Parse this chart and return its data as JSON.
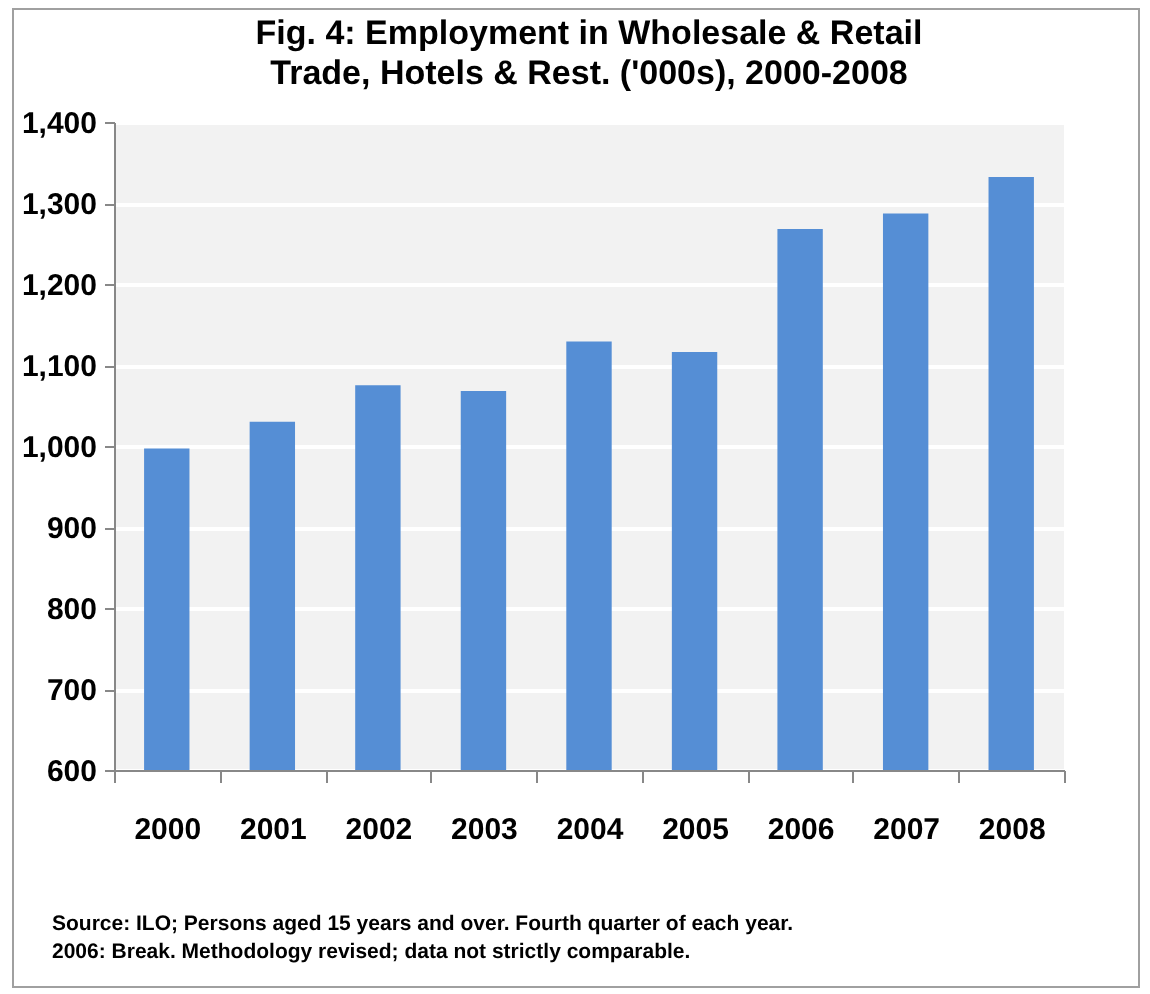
{
  "chart_data": {
    "type": "bar",
    "title": "Fig. 4: Employment in Wholesale & Retail Trade, Hotels & Rest. ('000s), 2000-2008",
    "categories": [
      "2000",
      "2001",
      "2002",
      "2003",
      "2004",
      "2005",
      "2006",
      "2007",
      "2008"
    ],
    "values": [
      997,
      1030,
      1075,
      1068,
      1129,
      1116,
      1268,
      1287,
      1332
    ],
    "color": "#558ed5",
    "ylim": [
      600,
      1400
    ],
    "yticks": [
      {
        "value": 600,
        "label": "600"
      },
      {
        "value": 700,
        "label": "700"
      },
      {
        "value": 800,
        "label": "800"
      },
      {
        "value": 900,
        "label": "900"
      },
      {
        "value": 1000,
        "label": "1,000"
      },
      {
        "value": 1100,
        "label": "1,100"
      },
      {
        "value": 1200,
        "label": "1,200"
      },
      {
        "value": 1300,
        "label": "1,300"
      },
      {
        "value": 1400,
        "label": "1,400"
      }
    ],
    "grid": "y",
    "annotations": [
      "Source: ILO; Persons aged 15 years and over. Fourth quarter of each year.",
      "2006: Break. Methodology revised; data not strictly comparable."
    ]
  }
}
